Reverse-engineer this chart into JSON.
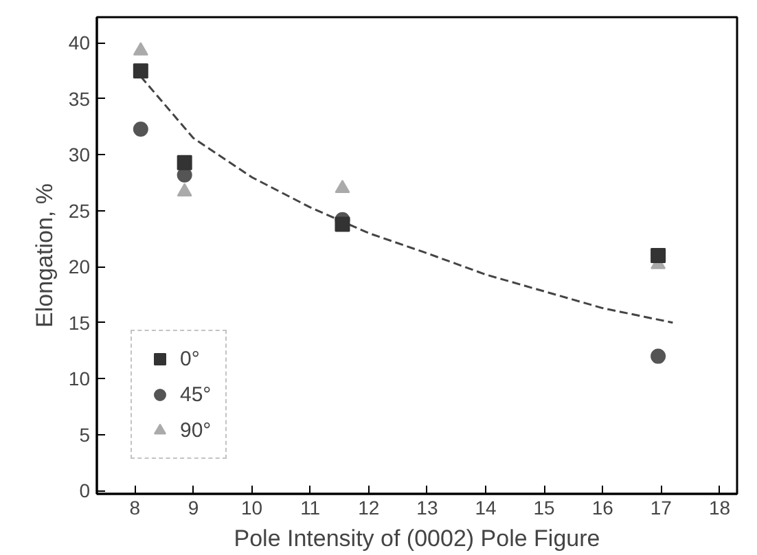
{
  "chart_data": {
    "type": "scatter",
    "xlabel": "Pole Intensity of (0002) Pole Figure",
    "ylabel": "Elongation, %",
    "xlim": [
      7.35,
      18.3
    ],
    "ylim": [
      -0.3,
      42.3
    ],
    "xticks": [
      8,
      9,
      10,
      11,
      12,
      13,
      14,
      15,
      16,
      17,
      18
    ],
    "yticks": [
      0,
      5,
      10,
      15,
      20,
      25,
      30,
      35,
      40
    ],
    "grid": false,
    "legend": "bottom left",
    "series": [
      {
        "name": "0°",
        "color": "#333333",
        "marker": "square",
        "x": [
          8.1,
          8.85,
          11.55,
          16.95
        ],
        "values": [
          37.5,
          29.3,
          23.8,
          21
        ]
      },
      {
        "name": "45°",
        "color": "#555555",
        "marker": "circle",
        "x": [
          8.1,
          8.85,
          11.55,
          16.95
        ],
        "values": [
          32.3,
          28.2,
          24.2,
          12
        ]
      },
      {
        "name": "90°",
        "color": "#aaaaaa",
        "marker": "triangle",
        "x": [
          8.1,
          8.85,
          11.55,
          16.95
        ],
        "values": [
          39.3,
          26.7,
          27,
          20.2
        ]
      },
      {
        "type": "line",
        "color": "#444444",
        "line_style": "dashed",
        "marker": "none",
        "x": [
          8.1,
          9,
          10,
          11,
          12,
          13,
          14,
          15,
          16,
          17.2
        ],
        "values": [
          37,
          31.5,
          28,
          25.3,
          23,
          21.2,
          19.3,
          17.8,
          16.3,
          15
        ]
      }
    ]
  }
}
